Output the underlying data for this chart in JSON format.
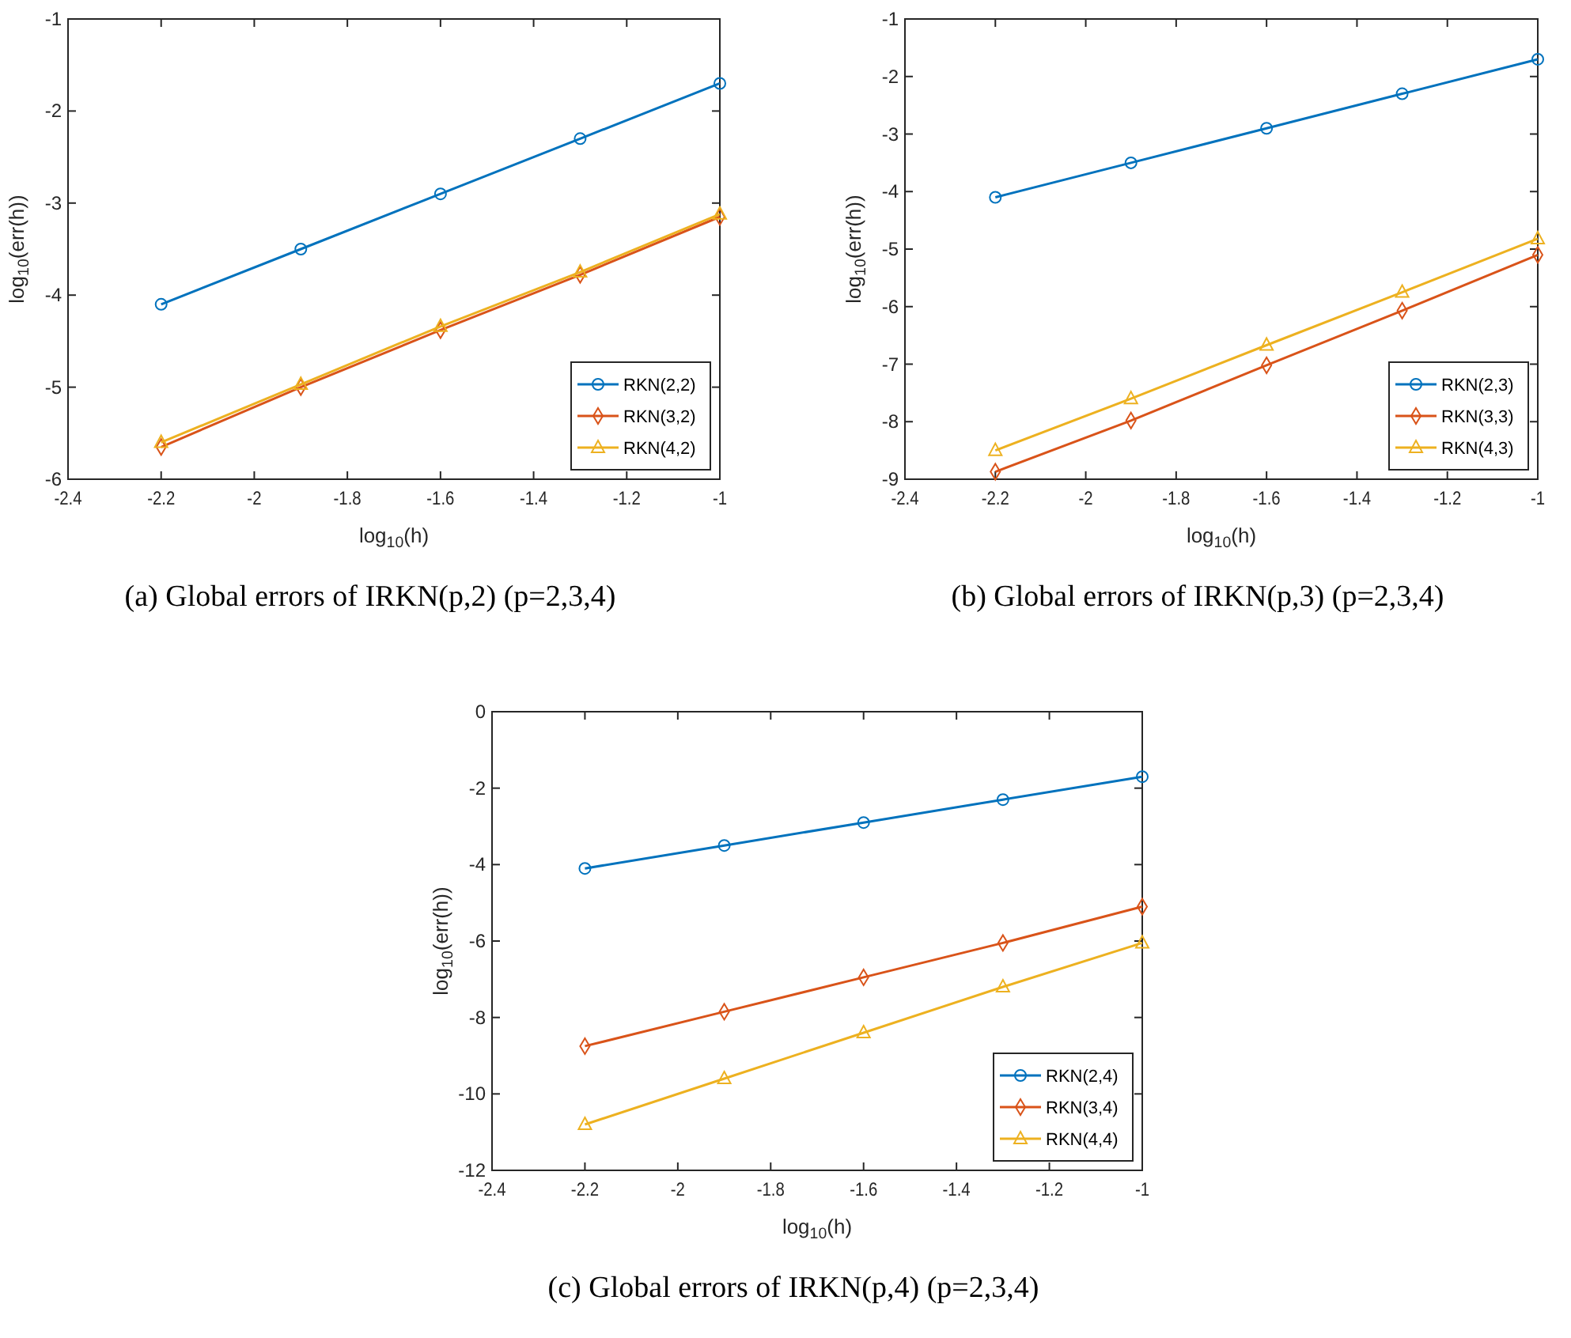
{
  "chart_data": [
    {
      "type": "line",
      "title": "(a)  Global errors of IRKN(p,2) (p=2,3,4)",
      "xlabel": "log$_{10}$(h)",
      "ylabel": "log$_{10}$(err(h))",
      "x": [
        -2.2,
        -1.9,
        -1.6,
        -1.3,
        -1
      ],
      "xlim": [
        -2.4,
        -1
      ],
      "xticks": [
        -2.4,
        -2.2,
        -2,
        -1.8,
        -1.6,
        -1.4,
        -1.2,
        -1
      ],
      "ylim": [
        -6,
        -1
      ],
      "yticks": [
        -6,
        -5,
        -4,
        -3,
        -2,
        -1
      ],
      "legend": "bottom right",
      "series": [
        {
          "name": "RKN(2,2)",
          "color": "#0072bd",
          "marker": "circle",
          "values": [
            -4.1,
            -3.5,
            -2.9,
            -2.3,
            -1.7
          ]
        },
        {
          "name": "RKN(3,2)",
          "color": "#d95319",
          "marker": "diamond",
          "values": [
            -5.65,
            -5.0,
            -4.38,
            -3.78,
            -3.15
          ]
        },
        {
          "name": "RKN(4,2)",
          "color": "#edb120",
          "marker": "triangle",
          "values": [
            -5.6,
            -4.97,
            -4.34,
            -3.75,
            -3.12
          ]
        }
      ]
    },
    {
      "type": "line",
      "title": "(b)  Global errors of IRKN(p,3) (p=2,3,4)",
      "xlabel": "log$_{10}$(h)",
      "ylabel": "log$_{10}$(err(h))",
      "x": [
        -2.2,
        -1.9,
        -1.6,
        -1.3,
        -1
      ],
      "xlim": [
        -2.4,
        -1
      ],
      "xticks": [
        -2.4,
        -2.2,
        -2,
        -1.8,
        -1.6,
        -1.4,
        -1.2,
        -1
      ],
      "ylim": [
        -9,
        -1
      ],
      "yticks": [
        -9,
        -8,
        -7,
        -6,
        -5,
        -4,
        -3,
        -2,
        -1
      ],
      "legend": "bottom right",
      "series": [
        {
          "name": "RKN(2,3)",
          "color": "#0072bd",
          "marker": "circle",
          "values": [
            -4.1,
            -3.5,
            -2.9,
            -2.3,
            -1.7
          ]
        },
        {
          "name": "RKN(3,3)",
          "color": "#d95319",
          "marker": "diamond",
          "values": [
            -8.87,
            -7.98,
            -7.02,
            -6.07,
            -5.1
          ]
        },
        {
          "name": "RKN(4,3)",
          "color": "#edb120",
          "marker": "triangle",
          "values": [
            -8.5,
            -7.6,
            -6.67,
            -5.75,
            -4.82
          ]
        }
      ]
    },
    {
      "type": "line",
      "title": "(c)  Global errors of IRKN(p,4) (p=2,3,4)",
      "xlabel": "log$_{10}$(h)",
      "ylabel": "log$_{10}$(err(h))",
      "x": [
        -2.2,
        -1.9,
        -1.6,
        -1.3,
        -1
      ],
      "xlim": [
        -2.4,
        -1
      ],
      "xticks": [
        -2.4,
        -2.2,
        -2,
        -1.8,
        -1.6,
        -1.4,
        -1.2,
        -1
      ],
      "ylim": [
        -12,
        0
      ],
      "yticks": [
        -12,
        -10,
        -8,
        -6,
        -4,
        -2,
        0
      ],
      "legend": "bottom right",
      "series": [
        {
          "name": "RKN(2,4)",
          "color": "#0072bd",
          "marker": "circle",
          "values": [
            -4.1,
            -3.5,
            -2.9,
            -2.3,
            -1.7
          ]
        },
        {
          "name": "RKN(3,4)",
          "color": "#d95319",
          "marker": "diamond",
          "values": [
            -8.75,
            -7.85,
            -6.95,
            -6.05,
            -5.1
          ]
        },
        {
          "name": "RKN(4,4)",
          "color": "#edb120",
          "marker": "triangle",
          "values": [
            -10.8,
            -9.6,
            -8.4,
            -7.2,
            -6.05
          ]
        }
      ]
    }
  ]
}
